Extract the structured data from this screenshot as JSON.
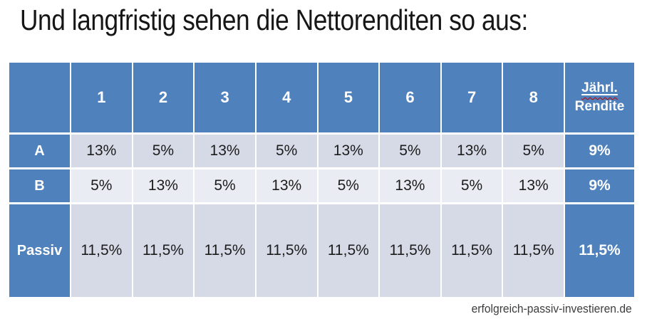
{
  "title": "Und langfristig sehen die Nettorenditen so aus:",
  "footer": "erfolgreich-passiv-investieren.de",
  "colors": {
    "accent_blue": "#4f81bd",
    "band_dark": "#d6dae7",
    "band_light": "#eaecf3",
    "grid_line": "#ffffff",
    "spellcheck_red": "#c00000",
    "header_text": "#ffffff",
    "data_text": "#1c1c1c"
  },
  "chart_data": {
    "type": "table",
    "title": "Und langfristig sehen die Nettorenditen so aus:",
    "corner_label": "",
    "period_headers": [
      "1",
      "2",
      "3",
      "4",
      "5",
      "6",
      "7",
      "8"
    ],
    "annual_header": {
      "line1": "Jährl.",
      "line2": "Rendite"
    },
    "rows": [
      {
        "label": "A",
        "values": [
          "13%",
          "5%",
          "13%",
          "5%",
          "13%",
          "5%",
          "13%",
          "5%"
        ],
        "annual": "9%"
      },
      {
        "label": "B",
        "values": [
          "5%",
          "13%",
          "5%",
          "13%",
          "5%",
          "13%",
          "5%",
          "13%"
        ],
        "annual": "9%"
      },
      {
        "label": "Passiv",
        "values": [
          "11,5%",
          "11,5%",
          "11,5%",
          "11,5%",
          "11,5%",
          "11,5%",
          "11,5%",
          "11,5%"
        ],
        "annual": "11,5%"
      }
    ]
  }
}
